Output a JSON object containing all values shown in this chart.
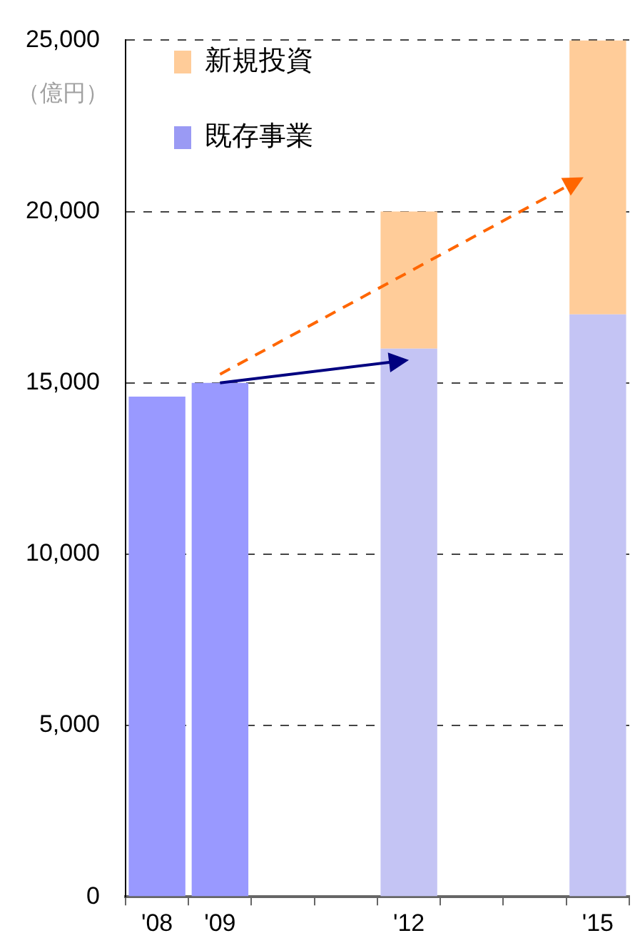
{
  "chart_data": {
    "type": "bar",
    "ylabel": "（億円）",
    "categories": [
      "'08",
      "'09",
      null,
      null,
      "'12",
      null,
      null,
      "'15"
    ],
    "stacked": true,
    "series": [
      {
        "name": "既存事業",
        "color": "#9a9af4",
        "colors": [
          "#9999ff",
          "#9999ff",
          "#c4c4f4",
          "#c4c4f4",
          "#c4c4f4",
          "#c4c4f4",
          "#c4c4f4",
          "#c4c4f4"
        ],
        "values": [
          14600,
          15000,
          null,
          null,
          16000,
          null,
          null,
          17000
        ]
      },
      {
        "name": "新規投資",
        "color": "#ffcc99",
        "values": [
          null,
          null,
          null,
          null,
          4000,
          null,
          null,
          8000
        ]
      }
    ],
    "ylim": [
      0,
      25000
    ],
    "yticks": [
      0,
      {
        "value": 5000,
        "label": "5,000"
      },
      {
        "value": 10000,
        "label": "10,000"
      },
      {
        "value": 15000,
        "label": "15,000"
      },
      {
        "value": 20000,
        "label": "20,000"
      },
      {
        "value": 25000,
        "label": "25,000"
      }
    ],
    "grid": "y",
    "legend": "top left"
  }
}
